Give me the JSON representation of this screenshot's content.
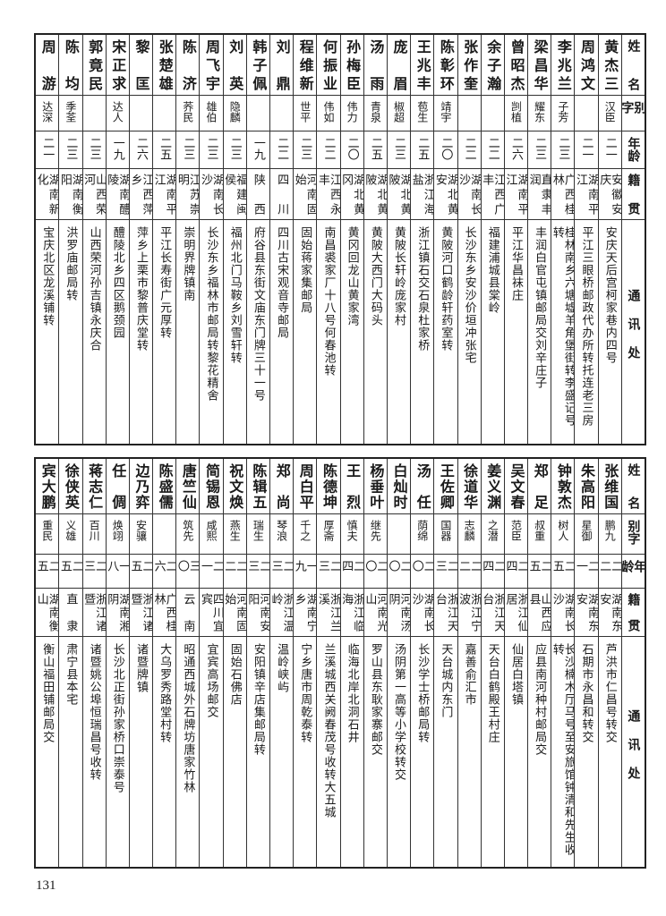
{
  "header": {
    "name": "姓名",
    "alias": "别字",
    "age": "年龄",
    "origin": "籍贯",
    "address": "通讯处"
  },
  "top": {
    "rows": [
      {
        "name": "黄杰三",
        "alias": "汉臣",
        "age": "二一",
        "origin": "安徽安庆",
        "address": "安庆天后宫柯家巷内四号"
      },
      {
        "name": "周鸿文",
        "alias": "",
        "age": "二一",
        "origin": "湖南平江",
        "address": "平江三眼桥邮政代办所转托连老三房"
      },
      {
        "name": "李兆兰",
        "alias": "子芳",
        "age": "二三",
        "origin": "广西桂林",
        "address": "桂林南乡六塘墟羊角堡街转李盛记号转"
      },
      {
        "name": "梁昌华",
        "alias": "耀东",
        "age": "二三",
        "origin": "直隶丰润",
        "address": "丰润白官屯镇邮局交刘辛庄子"
      },
      {
        "name": "曾昭杰",
        "alias": "剀植",
        "age": "二六",
        "origin": "湖南平江",
        "address": "平江华昌袜庄"
      },
      {
        "name": "余子瀚",
        "alias": "",
        "age": "二二",
        "origin": "江西广丰",
        "address": "福建浦城县棠岭"
      },
      {
        "name": "张作奎",
        "alias": "",
        "age": "二二",
        "origin": "湖南长沙",
        "address": "长沙东乡安沙价垣冲张宅"
      },
      {
        "name": "陈彰环",
        "alias": "靖宇",
        "age": "二〇",
        "origin": "湖北黄安",
        "address": "黄陂河口鹤龄轩药室转"
      },
      {
        "name": "王兆丰",
        "alias": "苞生",
        "age": "二五",
        "origin": "浙江海盐",
        "address": "浙江镇石交石泉杜家桥"
      },
      {
        "name": "庞眉",
        "alias": "椒超",
        "age": "二三",
        "origin": "湖北黄陂",
        "address": "黄陂长轩岭庞家村"
      },
      {
        "name": "汤雨",
        "alias": "青泉",
        "age": "二五",
        "origin": "湖北黄陂",
        "address": "黄陂大西门大码头"
      },
      {
        "name": "孙梅臣",
        "alias": "伟力",
        "age": "二〇",
        "origin": "湖北黄冈",
        "address": "黄冈回龙山黄家湾"
      },
      {
        "name": "何振业",
        "alias": "伟如",
        "age": "二二",
        "origin": "江西永丰",
        "address": "南昌裘家厂十八号何春池转"
      },
      {
        "name": "程维新",
        "alias": "世平",
        "age": "二三",
        "origin": "河南固始",
        "address": "固始蒋家集邮局"
      },
      {
        "name": "刘鼎",
        "alias": "",
        "age": "二二",
        "origin": "四川",
        "address": "四川古宋观音寺邮局"
      },
      {
        "name": "韩子佩",
        "alias": "",
        "age": "一九",
        "origin": "陕西",
        "address": "府谷县东街文庙东门牌三十一号"
      },
      {
        "name": "刘英",
        "alias": "隐麟",
        "age": "二三",
        "origin": "福建闽侯",
        "address": "福州北门马鞍乡刘雪轩转"
      },
      {
        "name": "周飞宇",
        "alias": "雄伯",
        "age": "二三",
        "origin": "湖南长沙",
        "address": "长沙东乡福林市邮局转黎花精舍"
      },
      {
        "name": "陈济",
        "alias": "荞民",
        "age": "二三",
        "origin": "江苏崇明",
        "address": "崇明界牌镇南"
      },
      {
        "name": "张楚雄",
        "alias": "",
        "age": "二五",
        "origin": "湖南平江",
        "address": "平江长寿街广元厚转"
      },
      {
        "name": "黎匡",
        "alias": "",
        "age": "二六",
        "origin": "江西萍乡",
        "address": "萍乡上栗市黎普庆堂转"
      },
      {
        "name": "宋正求",
        "alias": "达人",
        "age": "一九",
        "origin": "湖南醴陵",
        "address": "醴陵北乡四区鹅颈园"
      },
      {
        "name": "郭竟民",
        "alias": "",
        "age": "二三",
        "origin": "山西荣河",
        "address": "山西荣河孙吉镇永庆合"
      },
      {
        "name": "陈均",
        "alias": "季荃",
        "age": "二三",
        "origin": "湖南衡阳",
        "address": "洪罗庙邮局转"
      },
      {
        "name": "周游",
        "alias": "达深",
        "age": "二一",
        "origin": "湖南新化",
        "address": "宝庆北区龙溪铺转"
      }
    ]
  },
  "bottom": {
    "rows": [
      {
        "name": "张维国",
        "alias": "鹏九",
        "age": "二二",
        "origin": "湖南东安",
        "address": "芦洪市仁昌号转交"
      },
      {
        "name": "朱高阳",
        "alias": "星御",
        "age": "二一",
        "origin": "湖南东安",
        "address": "石期市永昌和转交"
      },
      {
        "name": "钟敦杰",
        "alias": "树人",
        "age": "二五",
        "origin": "湖南长沙",
        "address": "长沙楠木厅马号至安旅馆钟清和先生收转"
      },
      {
        "name": "郑足",
        "alias": "叔重",
        "age": "二五",
        "origin": "山西应县",
        "address": "应县南河种村邮局交"
      },
      {
        "name": "吴文春",
        "alias": "范臣",
        "age": "二四",
        "origin": "浙江仙居",
        "address": "仙居白塔镇"
      },
      {
        "name": "姜义渊",
        "alias": "之潜",
        "age": "二四",
        "origin": "浙江天台",
        "address": "天台白鹤殿王村庄"
      },
      {
        "name": "徐道华",
        "alias": "志麟",
        "age": "二二",
        "origin": "浙江宁波",
        "address": "嘉善俞汇市"
      },
      {
        "name": "王佐卿",
        "alias": "国器",
        "age": "二三",
        "origin": "浙江天台",
        "address": "天台城内东门"
      },
      {
        "name": "汤任",
        "alias": "荫绵",
        "age": "二〇",
        "origin": "湖南长沙",
        "address": "长沙学士桥邮局转"
      },
      {
        "name": "白灿时",
        "alias": "",
        "age": "二〇",
        "origin": "河南汤阴",
        "address": "汤阴第一高等小学校转交"
      },
      {
        "name": "杨垂叶",
        "alias": "继先",
        "age": "二〇",
        "origin": "河南光山",
        "address": "罗山县东耿家寨邮交"
      },
      {
        "name": "王烈",
        "alias": "慎夫",
        "age": "二四",
        "origin": "浙江临海",
        "address": "临海北岸北洞石井"
      },
      {
        "name": "陈德坤",
        "alias": "厚斋",
        "age": "二三",
        "origin": "浙江兰溪",
        "address": "兰溪城西关阙春茂号收转大五城"
      },
      {
        "name": "周白平",
        "alias": "千之",
        "age": "一九",
        "origin": "湖南宁乡",
        "address": "宁乡唐市周乾泰转"
      },
      {
        "name": "郑尚",
        "alias": "琴浪",
        "age": "二三",
        "origin": "浙江温岭",
        "address": "温岭峡屿"
      },
      {
        "name": "陈辑五",
        "alias": "瑞生",
        "age": "二三",
        "origin": "河南安阳",
        "address": "安阳镇辛店集邮局转"
      },
      {
        "name": "祝文焕",
        "alias": "燕生",
        "age": "二二",
        "origin": "河南固始",
        "address": "固始石佛店"
      },
      {
        "name": "简锡恩",
        "alias": "咸熙",
        "age": "二一",
        "origin": "四川宜宾",
        "address": "宜宾高场邮交"
      },
      {
        "name": "唐竺仙",
        "alias": "筑先",
        "age": "三〇",
        "origin": "云南",
        "address": "昭通西城外石牌坊唐家竹林"
      },
      {
        "name": "陈盛儒",
        "alias": "",
        "age": "二六",
        "origin": "广西桂林",
        "address": "大乌罗秀路堂村转"
      },
      {
        "name": "边乃弈",
        "alias": "安骧",
        "age": "二五",
        "origin": "浙江诸暨",
        "address": "诸暨牌镇"
      },
      {
        "name": "任倜",
        "alias": "焕翊",
        "age": "一八",
        "origin": "湖南湘阴",
        "address": "长沙北正街孙家桥口崇泰号"
      },
      {
        "name": "蒋志仁",
        "alias": "百川",
        "age": "二三",
        "origin": "浙江诸暨",
        "address": "诸暨姚公埠恒瑞昌号收转"
      },
      {
        "name": "徐侠英",
        "alias": "义雄",
        "age": "二五",
        "origin": "直隶",
        "address": "肃宁县本宅"
      },
      {
        "name": "宾大鹏",
        "alias": "重民",
        "age": "二五",
        "origin": "湖南衡山",
        "address": "衡山福田铺邮局交"
      }
    ]
  },
  "page_number": "131"
}
